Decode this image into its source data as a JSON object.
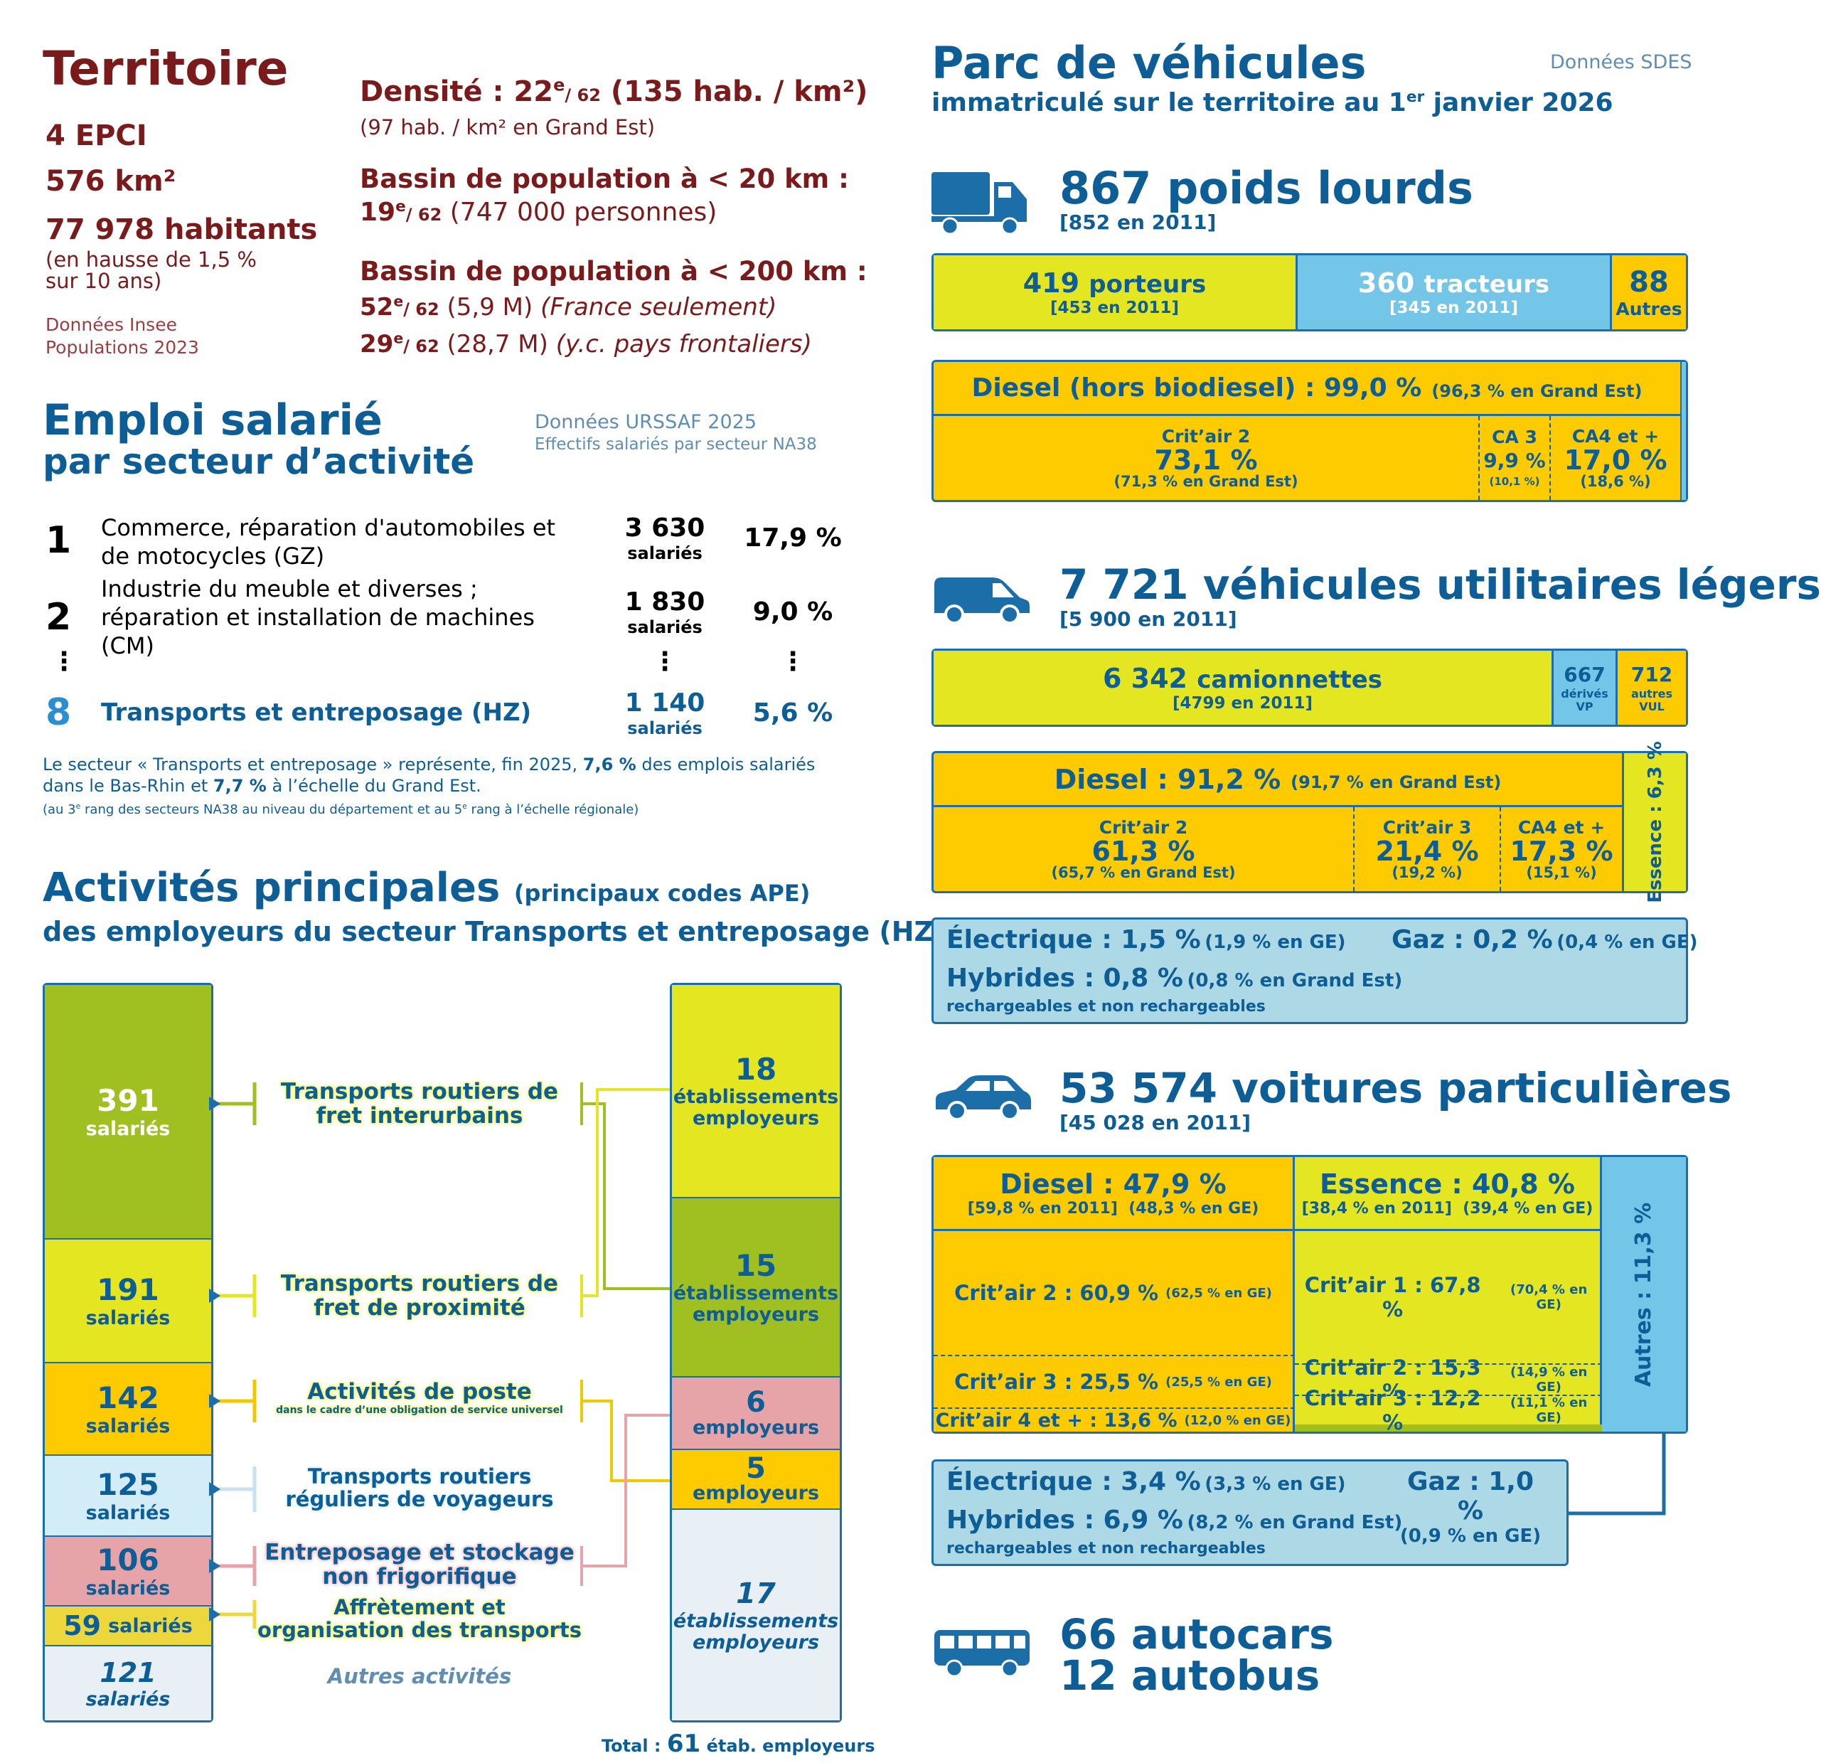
{
  "territoire": {
    "title": "Territoire",
    "epci": "4 EPCI",
    "area": "576 km²",
    "population": "77 978 habitants",
    "growth": "(en hausse de 1,5 %",
    "growth2": "sur 10 ans)",
    "source1": "Données Insee",
    "source2": "Populations 2023",
    "density_label": "Densité : 22",
    "density_rank_sup": "e",
    "density_rank_of": "/ 62",
    "density_value": "(135 hab. / km²)",
    "density_ge": "(97 hab. / km² en Grand Est)",
    "bassin20_label": "Bassin de population à < 20 km :",
    "bassin20_rank": "19",
    "bassin20_rank_sup": "e",
    "bassin20_of": "/ 62",
    "bassin20_value": "(747 000 personnes)",
    "bassin200_label": "Bassin de population à < 200 km :",
    "bassin200_rank1": "52",
    "bassin200_rank1_sup": "e",
    "bassin200_of1": "/ 62",
    "bassin200_value1": "(5,9 M)",
    "bassin200_note1": "(France seulement)",
    "bassin200_rank2": "29",
    "bassin200_rank2_sup": "e",
    "bassin200_of2": "/ 62",
    "bassin200_value2": "(28,7 M)",
    "bassin200_note2": "(y.c. pays frontaliers)"
  },
  "emploi": {
    "title": "Emploi salarié",
    "subtitle": "par secteur d’activité",
    "source1": "Données URSSAF 2025",
    "source2": "Effectifs salariés par secteur NA38",
    "rows": [
      {
        "rank": "1",
        "label": "Commerce, réparation d'automobiles et de motocycles (GZ)",
        "count": "3 630",
        "unit": "salariés",
        "pct": "17,9 %"
      },
      {
        "rank": "2",
        "label": "Industrie du meuble et diverses ; réparation et installation de machines (CM)",
        "count": "1 830",
        "unit": "salariés",
        "pct": "9,0 %"
      },
      {
        "rank": "8",
        "label": "Transports et entreposage (HZ)",
        "count": "1 140",
        "unit": "salariés",
        "pct": "5,6 %"
      }
    ],
    "dots": "⋮",
    "note_a": "Le secteur « Transports et entreposage » représente, fin 2025,",
    "note_pct1": "7,6 %",
    "note_b": "des emplois salariés",
    "note_c": "dans le Bas-Rhin et",
    "note_pct2": "7,7 %",
    "note_d": "à l’échelle du Grand Est.",
    "note_small_a": "(au 3",
    "note_small_sup1": "e",
    "note_small_b": " rang des secteurs NA38 au niveau du département et au 5",
    "note_small_sup2": "e",
    "note_small_c": " rang à l’échelle régionale)"
  },
  "activites": {
    "title": "Activités principales",
    "title_note": "(principaux codes APE)",
    "subtitle": "des employeurs du secteur Transports et entreposage (HZ)",
    "left": [
      {
        "value": "391",
        "unit": "salariés",
        "color": "#a0bf20"
      },
      {
        "value": "191",
        "unit": "salariés",
        "color": "#e3e620"
      },
      {
        "value": "142",
        "unit": "salariés",
        "color": "#fdcb00"
      },
      {
        "value": "125",
        "unit": "salariés",
        "color": "#d2ecf8"
      },
      {
        "value": "106",
        "unit": "salariés",
        "color": "#e6a4a8"
      },
      {
        "value": "59",
        "unit": "salariés",
        "color": "#ecd83c"
      },
      {
        "value": "121",
        "unit": "salariés",
        "color": "#e8f0f6"
      }
    ],
    "labels": [
      {
        "line1": "Transports routiers de",
        "line2": "fret interurbains",
        "small": ""
      },
      {
        "line1": "Transports routiers de",
        "line2": "fret de proximité",
        "small": ""
      },
      {
        "line1": "Activités de poste",
        "line2": "",
        "small": "dans le cadre d’une obligation de service universel"
      },
      {
        "line1": "Transports routiers",
        "line2": "réguliers de voyageurs",
        "small": ""
      },
      {
        "line1": "Entreposage et stockage",
        "line2": "non frigorifique",
        "small": ""
      },
      {
        "line1": "Affrètement et",
        "line2": "organisation des transports",
        "small": ""
      }
    ],
    "autres": "Autres activités",
    "right": [
      {
        "value": "18",
        "line1": "établissements",
        "line2": "employeurs",
        "color": "#e3e620"
      },
      {
        "value": "15",
        "line1": "établissements",
        "line2": "employeurs",
        "color": "#a0bf20"
      },
      {
        "value": "6",
        "line1": "employeurs",
        "line2": "",
        "color": "#e6a4a8"
      },
      {
        "value": "5",
        "line1": "employeurs",
        "line2": "",
        "color": "#fdcb00"
      },
      {
        "value": "17",
        "line1": "établissements",
        "line2": "employeurs",
        "color": "#e8f0f6"
      }
    ],
    "total_label": "Total :",
    "total_value": "61",
    "total_unit": "étab. employeurs"
  },
  "parc": {
    "title": "Parc de véhicules",
    "subtitle_a": "immatriculé sur le territoire au 1",
    "subtitle_sup": "er",
    "subtitle_b": " janvier 2026",
    "source": "Données SDES"
  },
  "pl": {
    "title": "867 poids lourds",
    "ref": "[852 en 2011]",
    "porteurs_v": "419",
    "porteurs_l": "porteurs",
    "porteurs_ref": "[453 en 2011]",
    "tracteurs_v": "360",
    "tracteurs_l": "tracteurs",
    "tracteurs_ref": "[345 en 2011]",
    "autres_v": "88",
    "autres_l": "Autres",
    "diesel": "Diesel (hors biodiesel) : 99,0 %",
    "diesel_ge": "(96,3 % en Grand Est)",
    "c1_l": "Crit’air 2",
    "c1_v": "73,1 %",
    "c1_ge": "(71,3 % en Grand Est)",
    "c2_l": "CA 3",
    "c2_v": "9,9 %",
    "c2_ge": "(10,1 %)",
    "c3_l": "CA4 et +",
    "c3_v": "17,0 %",
    "c3_ge": "(18,6 %)"
  },
  "vul": {
    "title": "7 721 véhicules utilitaires légers",
    "ref": "[5 900 en 2011]",
    "cam_v": "6 342",
    "cam_l": "camionnettes",
    "cam_ref": "[4799 en 2011]",
    "vp_v": "667",
    "vp_l1": "dérivés",
    "vp_l2": "VP",
    "aut_v": "712",
    "aut_l1": "autres",
    "aut_l2": "VUL",
    "diesel": "Diesel : 91,2 %",
    "diesel_ge": "(91,7 % en Grand Est)",
    "essence": "Essence : 6,3 %",
    "c1_l": "Crit’air 2",
    "c1_v": "61,3 %",
    "c1_ge": "(65,7 % en Grand Est)",
    "c2_l": "Crit’air 3",
    "c2_v": "21,4 %",
    "c2_ge": "(19,2 %)",
    "c3_l": "CA4 et +",
    "c3_v": "17,3 %",
    "c3_ge": "(15,1 %)",
    "elec": "Électrique : 1,5 %",
    "elec_ge": "(1,9 % en GE)",
    "gaz": "Gaz : 0,2 %",
    "gaz_ge": "(0,4 % en GE)",
    "hyb": "Hybrides : 0,8 %",
    "hyb_ge": "(0,8 % en Grand Est)",
    "hyb_note": "rechargeables et non rechargeables"
  },
  "vp": {
    "title": "53 574 voitures particulières",
    "ref": "[45 028 en 2011]",
    "diesel": "Diesel : 47,9 %",
    "diesel_ref": "[59,8 % en 2011]  (48,3 % en GE)",
    "essence": "Essence : 40,8 %",
    "essence_ref": "[38,4 % en 2011]  (39,4 % en GE)",
    "autres": "Autres : 11,3 %",
    "d_c2": "Crit’air 2 : 60,9 %",
    "d_c2_ge": "(62,5 % en GE)",
    "d_c3": "Crit’air 3 : 25,5 %",
    "d_c3_ge": "(25,5 % en GE)",
    "d_c4": "Crit’air 4 et + : 13,6 %",
    "d_c4_ge": "(12,0 % en GE)",
    "e_c1": "Crit’air 1 : 67,8 %",
    "e_c1_ge": "(70,4 % en GE)",
    "e_c2": "Crit’air 2 : 15,3 %",
    "e_c2_ge": "(14,9 % en GE)",
    "e_c3": "Crit’air 3 : 12,2 %",
    "e_c3_ge": "(11,1 % en GE)",
    "elec": "Électrique : 3,4 %",
    "elec_ge": "(3,3 % en GE)",
    "gaz": "Gaz : 1,0 %",
    "gaz_ge": "(0,9 % en GE)",
    "hyb": "Hybrides : 6,9 %",
    "hyb_ge": "(8,2 % en Grand Est)",
    "hyb_note": "rechargeables et non rechargeables"
  },
  "bus": {
    "autocars": "66 autocars",
    "autobus": "12 autobus"
  },
  "icons": [
    "truck-icon",
    "van-icon",
    "car-icon",
    "bus-icon"
  ]
}
